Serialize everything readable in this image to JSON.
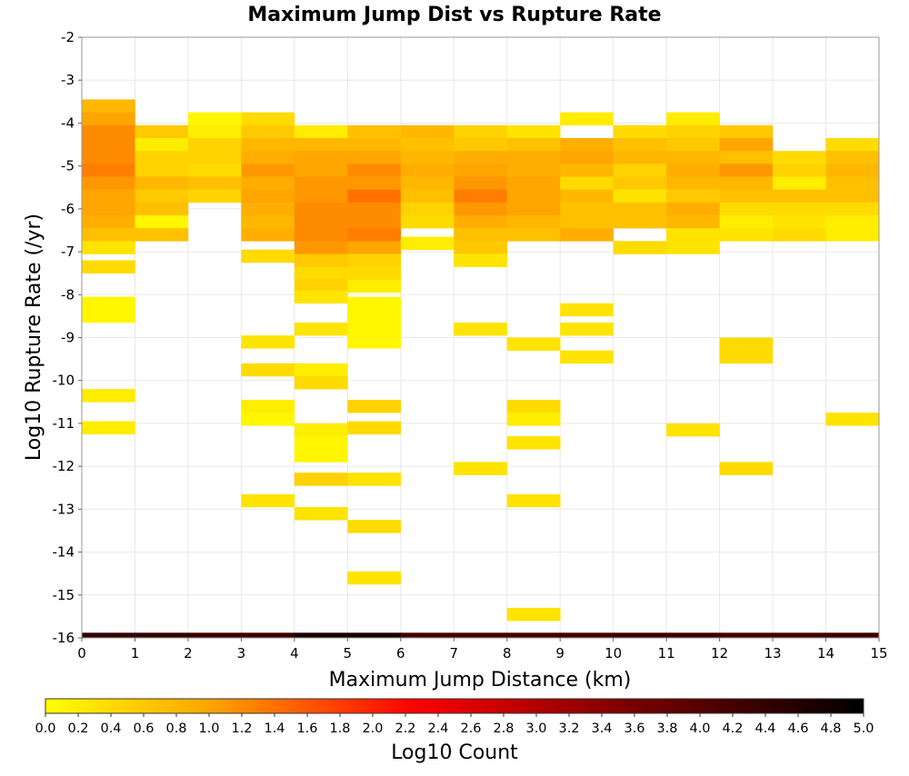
{
  "chart_data": {
    "type": "heatmap",
    "title": "Maximum Jump Dist vs Rupture Rate",
    "xlabel": "Maximum Jump Distance (km)",
    "ylabel": "Log10 Rupture Rate (/yr)",
    "xlim": [
      0,
      15
    ],
    "ylim": [
      -16,
      -2
    ],
    "x_ticks": [
      "0",
      "1",
      "2",
      "3",
      "4",
      "5",
      "6",
      "7",
      "8",
      "9",
      "10",
      "11",
      "12",
      "13",
      "14",
      "15"
    ],
    "y_ticks": [
      "-16",
      "-15",
      "-14",
      "-13",
      "-12",
      "-11",
      "-10",
      "-9",
      "-8",
      "-7",
      "-6",
      "-5",
      "-4",
      "-3",
      "-2"
    ],
    "grid": true,
    "colorbar": {
      "label": "Log10 Count",
      "range": [
        0,
        5
      ],
      "ticks": [
        "0.0",
        "0.2",
        "0.4",
        "0.6",
        "0.8",
        "1.0",
        "1.2",
        "1.4",
        "1.6",
        "1.8",
        "2.0",
        "2.2",
        "2.4",
        "2.6",
        "2.8",
        "3.0",
        "3.2",
        "3.4",
        "3.6",
        "3.8",
        "4.0",
        "4.2",
        "4.4",
        "4.6",
        "4.8",
        "5.0"
      ],
      "colors": [
        "#ffff00",
        "#ffa500",
        "#ff0000",
        "#800000",
        "#000000"
      ]
    },
    "bin_height": 0.3,
    "cells": [
      [
        0,
        -3.6,
        0.8
      ],
      [
        0,
        -3.9,
        1.0
      ],
      [
        0,
        -4.2,
        1.2
      ],
      [
        0,
        -4.5,
        1.2
      ],
      [
        0,
        -4.8,
        1.2
      ],
      [
        0,
        -5.1,
        1.3
      ],
      [
        0,
        -5.4,
        1.1
      ],
      [
        0,
        -5.7,
        1.0
      ],
      [
        0,
        -6.0,
        1.0
      ],
      [
        0,
        -6.3,
        0.9
      ],
      [
        0,
        -6.6,
        0.7
      ],
      [
        0,
        -6.9,
        0.3
      ],
      [
        0,
        -7.35,
        0.4
      ],
      [
        0,
        -8.2,
        0.1
      ],
      [
        0,
        -8.5,
        0.1
      ],
      [
        0,
        -10.35,
        0.2
      ],
      [
        0,
        -11.1,
        0.2
      ],
      [
        1,
        -4.2,
        0.6
      ],
      [
        1,
        -4.5,
        0.2
      ],
      [
        1,
        -4.8,
        0.5
      ],
      [
        1,
        -5.1,
        0.5
      ],
      [
        1,
        -5.4,
        0.8
      ],
      [
        1,
        -5.7,
        0.6
      ],
      [
        1,
        -6.0,
        0.7
      ],
      [
        1,
        -6.3,
        0.1
      ],
      [
        1,
        -6.6,
        0.7
      ],
      [
        2,
        -3.9,
        0.1
      ],
      [
        2,
        -4.2,
        0.2
      ],
      [
        2,
        -4.5,
        0.5
      ],
      [
        2,
        -4.8,
        0.5
      ],
      [
        2,
        -5.1,
        0.4
      ],
      [
        2,
        -5.4,
        0.7
      ],
      [
        2,
        -5.7,
        0.5
      ],
      [
        3,
        -3.9,
        0.4
      ],
      [
        3,
        -4.2,
        0.6
      ],
      [
        3,
        -4.5,
        0.8
      ],
      [
        3,
        -4.8,
        0.9
      ],
      [
        3,
        -5.1,
        1.1
      ],
      [
        3,
        -5.4,
        0.9
      ],
      [
        3,
        -5.7,
        1.0
      ],
      [
        3,
        -6.0,
        0.9
      ],
      [
        3,
        -6.3,
        0.8
      ],
      [
        3,
        -6.6,
        0.9
      ],
      [
        3,
        -7.1,
        0.4
      ],
      [
        3,
        -9.1,
        0.3
      ],
      [
        3,
        -9.75,
        0.4
      ],
      [
        3,
        -10.6,
        0.2
      ],
      [
        3,
        -10.9,
        0.1
      ],
      [
        3,
        -12.8,
        0.3
      ],
      [
        4,
        -4.2,
        0.2
      ],
      [
        4,
        -4.5,
        0.8
      ],
      [
        4,
        -4.8,
        1.0
      ],
      [
        4,
        -5.1,
        1.0
      ],
      [
        4,
        -5.4,
        1.1
      ],
      [
        4,
        -5.7,
        1.1
      ],
      [
        4,
        -6.0,
        1.2
      ],
      [
        4,
        -6.3,
        1.2
      ],
      [
        4,
        -6.6,
        1.2
      ],
      [
        4,
        -6.9,
        1.1
      ],
      [
        4,
        -7.2,
        0.6
      ],
      [
        4,
        -7.5,
        0.4
      ],
      [
        4,
        -7.8,
        0.5
      ],
      [
        4,
        -8.05,
        0.3
      ],
      [
        4,
        -8.8,
        0.3
      ],
      [
        4,
        -9.75,
        0.2
      ],
      [
        4,
        -10.05,
        0.4
      ],
      [
        4,
        -11.15,
        0.2
      ],
      [
        4,
        -11.45,
        0.1
      ],
      [
        4,
        -11.75,
        0.1
      ],
      [
        4,
        -12.3,
        0.5
      ],
      [
        4,
        -13.1,
        0.3
      ],
      [
        5,
        -4.2,
        0.7
      ],
      [
        5,
        -4.5,
        0.8
      ],
      [
        5,
        -4.8,
        1.0
      ],
      [
        5,
        -5.1,
        1.2
      ],
      [
        5,
        -5.4,
        1.1
      ],
      [
        5,
        -5.7,
        1.4
      ],
      [
        5,
        -6.0,
        1.2
      ],
      [
        5,
        -6.3,
        1.2
      ],
      [
        5,
        -6.6,
        1.3
      ],
      [
        5,
        -6.9,
        1.0
      ],
      [
        5,
        -7.2,
        0.5
      ],
      [
        5,
        -7.5,
        0.4
      ],
      [
        5,
        -7.8,
        0.2
      ],
      [
        5,
        -8.2,
        0.1
      ],
      [
        5,
        -8.5,
        0.1
      ],
      [
        5,
        -8.8,
        0.1
      ],
      [
        5,
        -9.1,
        0.1
      ],
      [
        5,
        -10.6,
        0.5
      ],
      [
        5,
        -11.1,
        0.4
      ],
      [
        5,
        -12.3,
        0.3
      ],
      [
        5,
        -13.4,
        0.4
      ],
      [
        5,
        -14.6,
        0.3
      ],
      [
        6,
        -4.2,
        0.8
      ],
      [
        6,
        -4.5,
        0.7
      ],
      [
        6,
        -4.8,
        0.8
      ],
      [
        6,
        -5.1,
        0.9
      ],
      [
        6,
        -5.4,
        0.8
      ],
      [
        6,
        -5.7,
        0.7
      ],
      [
        6,
        -6.0,
        0.5
      ],
      [
        6,
        -6.3,
        0.4
      ],
      [
        6,
        -6.8,
        0.2
      ],
      [
        7,
        -4.2,
        0.5
      ],
      [
        7,
        -4.5,
        0.6
      ],
      [
        7,
        -4.8,
        0.9
      ],
      [
        7,
        -5.1,
        1.0
      ],
      [
        7,
        -5.4,
        1.1
      ],
      [
        7,
        -5.7,
        1.3
      ],
      [
        7,
        -6.0,
        1.1
      ],
      [
        7,
        -6.3,
        0.9
      ],
      [
        7,
        -6.6,
        0.7
      ],
      [
        7,
        -6.9,
        0.6
      ],
      [
        7,
        -7.2,
        0.3
      ],
      [
        7,
        -8.8,
        0.3
      ],
      [
        7,
        -12.05,
        0.3
      ],
      [
        8,
        -4.2,
        0.3
      ],
      [
        8,
        -4.5,
        0.7
      ],
      [
        8,
        -4.8,
        0.9
      ],
      [
        8,
        -5.1,
        0.9
      ],
      [
        8,
        -5.4,
        1.0
      ],
      [
        8,
        -5.7,
        1.0
      ],
      [
        8,
        -6.0,
        1.0
      ],
      [
        8,
        -6.3,
        0.8
      ],
      [
        8,
        -6.6,
        0.7
      ],
      [
        8,
        -9.15,
        0.3
      ],
      [
        8,
        -10.6,
        0.4
      ],
      [
        8,
        -10.9,
        0.2
      ],
      [
        8,
        -11.45,
        0.3
      ],
      [
        8,
        -12.8,
        0.3
      ],
      [
        8,
        -15.45,
        0.3
      ],
      [
        9,
        -3.9,
        0.2
      ],
      [
        9,
        -4.5,
        0.9
      ],
      [
        9,
        -4.8,
        1.0
      ],
      [
        9,
        -5.1,
        0.8
      ],
      [
        9,
        -5.4,
        0.4
      ],
      [
        9,
        -5.7,
        0.8
      ],
      [
        9,
        -6.0,
        0.7
      ],
      [
        9,
        -6.3,
        0.7
      ],
      [
        9,
        -6.6,
        0.9
      ],
      [
        9,
        -8.35,
        0.3
      ],
      [
        9,
        -8.8,
        0.3
      ],
      [
        9,
        -9.45,
        0.3
      ],
      [
        10,
        -4.2,
        0.4
      ],
      [
        10,
        -4.5,
        0.7
      ],
      [
        10,
        -4.8,
        0.8
      ],
      [
        10,
        -5.1,
        0.5
      ],
      [
        10,
        -5.4,
        0.6
      ],
      [
        10,
        -5.7,
        0.3
      ],
      [
        10,
        -6.0,
        0.7
      ],
      [
        10,
        -6.3,
        0.7
      ],
      [
        10,
        -6.9,
        0.4
      ],
      [
        11,
        -3.9,
        0.2
      ],
      [
        11,
        -4.2,
        0.5
      ],
      [
        11,
        -4.5,
        0.6
      ],
      [
        11,
        -4.8,
        0.8
      ],
      [
        11,
        -5.1,
        0.9
      ],
      [
        11,
        -5.4,
        0.8
      ],
      [
        11,
        -5.7,
        0.6
      ],
      [
        11,
        -6.0,
        0.9
      ],
      [
        11,
        -6.3,
        0.8
      ],
      [
        11,
        -6.6,
        0.3
      ],
      [
        11,
        -6.9,
        0.3
      ],
      [
        11,
        -11.15,
        0.3
      ],
      [
        12,
        -4.2,
        0.6
      ],
      [
        12,
        -4.5,
        1.0
      ],
      [
        12,
        -4.8,
        0.7
      ],
      [
        12,
        -5.1,
        1.1
      ],
      [
        12,
        -5.4,
        0.8
      ],
      [
        12,
        -5.7,
        0.7
      ],
      [
        12,
        -6.0,
        0.4
      ],
      [
        12,
        -6.3,
        0.2
      ],
      [
        12,
        -6.6,
        0.3
      ],
      [
        12,
        -9.15,
        0.4
      ],
      [
        12,
        -9.45,
        0.4
      ],
      [
        12,
        -12.05,
        0.4
      ],
      [
        13,
        -4.8,
        0.4
      ],
      [
        13,
        -5.1,
        0.5
      ],
      [
        13,
        -5.4,
        0.2
      ],
      [
        13,
        -5.7,
        0.7
      ],
      [
        13,
        -6.0,
        0.4
      ],
      [
        13,
        -6.3,
        0.3
      ],
      [
        13,
        -6.6,
        0.4
      ],
      [
        14,
        -4.5,
        0.4
      ],
      [
        14,
        -4.8,
        0.7
      ],
      [
        14,
        -5.1,
        0.8
      ],
      [
        14,
        -5.4,
        0.7
      ],
      [
        14,
        -5.7,
        0.7
      ],
      [
        14,
        -6.0,
        0.4
      ],
      [
        14,
        -6.3,
        0.2
      ],
      [
        14,
        -6.6,
        0.2
      ],
      [
        14,
        -10.9,
        0.3
      ]
    ],
    "bottom_row": {
      "y": -15.94,
      "height": 0.12,
      "values": [
        4.4,
        4.4,
        4.3,
        4.3,
        4.7,
        4.7,
        4.2,
        4.2,
        4.2,
        4.2,
        4.3,
        4.3,
        4.2,
        4.2,
        4.3
      ]
    }
  }
}
